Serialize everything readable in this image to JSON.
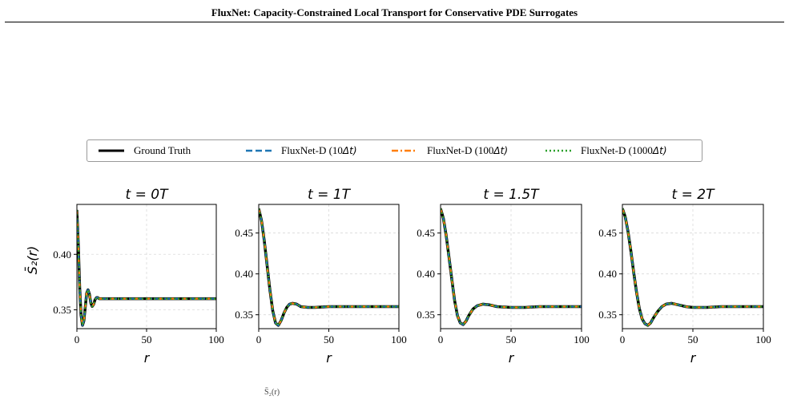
{
  "header": {
    "title": "FluxNet: Capacity-Constrained Local Transport for Conservative PDE Surrogates"
  },
  "legend": {
    "items": [
      {
        "label": "Ground Truth",
        "color": "#000000",
        "style": "solid"
      },
      {
        "label": "FluxNet-D (10",
        "suffix": "Δt)",
        "color": "#1f77b4",
        "style": "dashed"
      },
      {
        "label": "FluxNet-D (100",
        "suffix": "Δt)",
        "color": "#ff7f0e",
        "style": "dashdot"
      },
      {
        "label": "FluxNet-D (1000",
        "suffix": "Δt)",
        "color": "#2ca02c",
        "style": "dotted"
      }
    ]
  },
  "footer_note": "S̄₂(r)",
  "chart_data": [
    {
      "type": "line",
      "title": "t = 0T",
      "xlabel": "r",
      "ylabel": "S̄₂(r)",
      "xlim": [
        0,
        100
      ],
      "ylim": [
        0.333,
        0.445
      ],
      "xticks": [
        0,
        50,
        100
      ],
      "yticks": [
        0.35,
        0.4
      ],
      "ytick_labels": [
        "0.35",
        "0.40"
      ],
      "grid": true,
      "x": [
        0,
        1,
        2,
        3,
        4,
        5,
        6,
        7,
        8,
        9,
        10,
        11,
        12,
        13,
        14,
        15,
        16,
        18,
        20,
        25,
        30,
        40,
        50,
        60,
        70,
        80,
        90,
        100
      ],
      "series": [
        {
          "name": "Ground Truth",
          "values": [
            0.44,
            0.41,
            0.37,
            0.345,
            0.336,
            0.34,
            0.352,
            0.365,
            0.368,
            0.364,
            0.356,
            0.353,
            0.355,
            0.359,
            0.361,
            0.361,
            0.36,
            0.36,
            0.36,
            0.36,
            0.36,
            0.36,
            0.36,
            0.36,
            0.36,
            0.36,
            0.36,
            0.36
          ]
        },
        {
          "name": "FluxNet-D (10Δt)",
          "values": [
            0.44,
            0.41,
            0.37,
            0.345,
            0.336,
            0.34,
            0.352,
            0.365,
            0.368,
            0.364,
            0.356,
            0.353,
            0.355,
            0.359,
            0.361,
            0.361,
            0.36,
            0.36,
            0.36,
            0.36,
            0.36,
            0.36,
            0.36,
            0.36,
            0.36,
            0.36,
            0.36,
            0.36
          ]
        },
        {
          "name": "FluxNet-D (100Δt)",
          "values": [
            0.44,
            0.41,
            0.37,
            0.345,
            0.336,
            0.34,
            0.352,
            0.365,
            0.368,
            0.364,
            0.356,
            0.353,
            0.355,
            0.359,
            0.361,
            0.361,
            0.36,
            0.36,
            0.36,
            0.36,
            0.36,
            0.36,
            0.36,
            0.36,
            0.36,
            0.36,
            0.36,
            0.36
          ]
        },
        {
          "name": "FluxNet-D (1000Δt)",
          "values": [
            0.44,
            0.41,
            0.37,
            0.345,
            0.336,
            0.34,
            0.352,
            0.365,
            0.368,
            0.364,
            0.356,
            0.353,
            0.355,
            0.359,
            0.361,
            0.361,
            0.36,
            0.36,
            0.36,
            0.36,
            0.36,
            0.36,
            0.36,
            0.36,
            0.36,
            0.36,
            0.36,
            0.36
          ]
        }
      ]
    },
    {
      "type": "line",
      "title": "t = 1T",
      "xlabel": "r",
      "ylabel": "",
      "xlim": [
        0,
        100
      ],
      "ylim": [
        0.333,
        0.485
      ],
      "xticks": [
        0,
        50,
        100
      ],
      "yticks": [
        0.35,
        0.4,
        0.45
      ],
      "ytick_labels": [
        "0.35",
        "0.40",
        "0.45"
      ],
      "grid": true,
      "x": [
        0,
        2,
        4,
        6,
        8,
        10,
        12,
        14,
        16,
        18,
        20,
        22,
        24,
        27,
        30,
        35,
        40,
        50,
        60,
        70,
        80,
        90,
        100
      ],
      "series": [
        {
          "name": "Ground Truth",
          "values": [
            0.48,
            0.465,
            0.44,
            0.41,
            0.38,
            0.355,
            0.34,
            0.337,
            0.343,
            0.352,
            0.359,
            0.363,
            0.364,
            0.363,
            0.36,
            0.359,
            0.359,
            0.36,
            0.36,
            0.36,
            0.36,
            0.36,
            0.36
          ]
        },
        {
          "name": "FluxNet-D (10Δt)",
          "values": [
            0.48,
            0.465,
            0.44,
            0.41,
            0.38,
            0.355,
            0.34,
            0.337,
            0.343,
            0.352,
            0.359,
            0.363,
            0.364,
            0.363,
            0.36,
            0.359,
            0.359,
            0.36,
            0.36,
            0.36,
            0.36,
            0.36,
            0.36
          ]
        },
        {
          "name": "FluxNet-D (100Δt)",
          "values": [
            0.48,
            0.465,
            0.44,
            0.41,
            0.38,
            0.355,
            0.34,
            0.337,
            0.343,
            0.352,
            0.359,
            0.363,
            0.364,
            0.363,
            0.36,
            0.359,
            0.359,
            0.36,
            0.36,
            0.36,
            0.36,
            0.36,
            0.36
          ]
        },
        {
          "name": "FluxNet-D (1000Δt)",
          "values": [
            0.48,
            0.465,
            0.44,
            0.41,
            0.38,
            0.355,
            0.34,
            0.337,
            0.343,
            0.352,
            0.359,
            0.363,
            0.364,
            0.363,
            0.36,
            0.359,
            0.359,
            0.36,
            0.36,
            0.36,
            0.36,
            0.36,
            0.36
          ]
        }
      ]
    },
    {
      "type": "line",
      "title": "t = 1.5T",
      "xlabel": "r",
      "ylabel": "",
      "xlim": [
        0,
        100
      ],
      "ylim": [
        0.333,
        0.485
      ],
      "xticks": [
        0,
        50,
        100
      ],
      "yticks": [
        0.35,
        0.4,
        0.45
      ],
      "ytick_labels": [
        "0.35",
        "0.40",
        "0.45"
      ],
      "grid": true,
      "x": [
        0,
        2,
        4,
        6,
        8,
        10,
        12,
        14,
        16,
        18,
        20,
        23,
        26,
        30,
        35,
        40,
        50,
        60,
        70,
        80,
        90,
        100
      ],
      "series": [
        {
          "name": "Ground Truth",
          "values": [
            0.48,
            0.468,
            0.447,
            0.42,
            0.393,
            0.367,
            0.349,
            0.34,
            0.338,
            0.342,
            0.349,
            0.357,
            0.361,
            0.363,
            0.362,
            0.36,
            0.359,
            0.359,
            0.36,
            0.36,
            0.36,
            0.36
          ]
        },
        {
          "name": "FluxNet-D (10Δt)",
          "values": [
            0.48,
            0.468,
            0.447,
            0.42,
            0.393,
            0.367,
            0.349,
            0.34,
            0.338,
            0.342,
            0.349,
            0.357,
            0.361,
            0.363,
            0.362,
            0.36,
            0.359,
            0.359,
            0.36,
            0.36,
            0.36,
            0.36
          ]
        },
        {
          "name": "FluxNet-D (100Δt)",
          "values": [
            0.48,
            0.468,
            0.447,
            0.42,
            0.393,
            0.367,
            0.349,
            0.34,
            0.338,
            0.342,
            0.349,
            0.357,
            0.361,
            0.363,
            0.362,
            0.36,
            0.359,
            0.359,
            0.36,
            0.36,
            0.36,
            0.36
          ]
        },
        {
          "name": "FluxNet-D (1000Δt)",
          "values": [
            0.48,
            0.468,
            0.447,
            0.42,
            0.393,
            0.367,
            0.349,
            0.34,
            0.338,
            0.342,
            0.349,
            0.357,
            0.361,
            0.363,
            0.362,
            0.36,
            0.359,
            0.359,
            0.36,
            0.36,
            0.36,
            0.36
          ]
        }
      ]
    },
    {
      "type": "line",
      "title": "t = 2T",
      "xlabel": "r",
      "ylabel": "",
      "xlim": [
        0,
        100
      ],
      "ylim": [
        0.333,
        0.485
      ],
      "xticks": [
        0,
        50,
        100
      ],
      "yticks": [
        0.35,
        0.4,
        0.45
      ],
      "ytick_labels": [
        "0.35",
        "0.40",
        "0.45"
      ],
      "grid": true,
      "x": [
        0,
        2,
        4,
        6,
        8,
        10,
        12,
        14,
        16,
        18,
        20,
        22,
        25,
        28,
        31,
        35,
        40,
        45,
        50,
        60,
        70,
        80,
        90,
        100
      ],
      "series": [
        {
          "name": "Ground Truth",
          "values": [
            0.48,
            0.47,
            0.452,
            0.428,
            0.402,
            0.378,
            0.358,
            0.345,
            0.339,
            0.337,
            0.34,
            0.346,
            0.354,
            0.36,
            0.363,
            0.364,
            0.362,
            0.36,
            0.359,
            0.359,
            0.36,
            0.36,
            0.36,
            0.36
          ]
        },
        {
          "name": "FluxNet-D (10Δt)",
          "values": [
            0.48,
            0.47,
            0.452,
            0.428,
            0.402,
            0.378,
            0.358,
            0.345,
            0.339,
            0.337,
            0.34,
            0.346,
            0.354,
            0.36,
            0.363,
            0.364,
            0.362,
            0.36,
            0.359,
            0.359,
            0.36,
            0.36,
            0.36,
            0.36
          ]
        },
        {
          "name": "FluxNet-D (100Δt)",
          "values": [
            0.48,
            0.47,
            0.452,
            0.428,
            0.402,
            0.378,
            0.358,
            0.345,
            0.339,
            0.337,
            0.34,
            0.346,
            0.354,
            0.36,
            0.363,
            0.364,
            0.362,
            0.36,
            0.359,
            0.359,
            0.36,
            0.36,
            0.36,
            0.36
          ]
        },
        {
          "name": "FluxNet-D (1000Δt)",
          "values": [
            0.48,
            0.47,
            0.452,
            0.428,
            0.402,
            0.378,
            0.358,
            0.345,
            0.339,
            0.337,
            0.34,
            0.346,
            0.354,
            0.36,
            0.363,
            0.364,
            0.362,
            0.36,
            0.359,
            0.359,
            0.36,
            0.36,
            0.36,
            0.36
          ]
        }
      ]
    }
  ]
}
